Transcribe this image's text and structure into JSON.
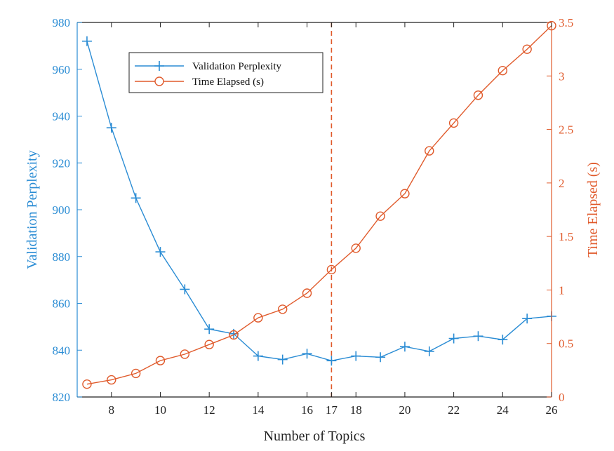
{
  "colors": {
    "left_series": "#2a8cd4",
    "right_series": "#e05a2b",
    "axis": "#222222",
    "vline": "#e05a2b"
  },
  "chart_data": {
    "type": "line",
    "xlabel": "Number of Topics",
    "ylabel_left": "Validation Perplexity",
    "ylabel_right": "Time Elapsed (s)",
    "xlim": [
      6.6,
      26
    ],
    "ylim_left": [
      820,
      980
    ],
    "ylim_right": [
      0,
      3.5
    ],
    "x_ticks": [
      8,
      10,
      12,
      14,
      16,
      17,
      18,
      20,
      22,
      24,
      26
    ],
    "y_left_ticks": [
      820,
      840,
      860,
      880,
      900,
      920,
      940,
      960,
      980
    ],
    "y_right_ticks": [
      0,
      0.5,
      1,
      1.5,
      2,
      2.5,
      3,
      3.5
    ],
    "y_right_tick_labels": [
      "0",
      "0.5",
      "1",
      "1.5",
      "2",
      "2.5",
      "3",
      "3.5"
    ],
    "vertical_line_x": 17,
    "grid": false,
    "legend_position": "top-left",
    "series": [
      {
        "name": "Validation Perplexity",
        "axis": "left",
        "marker": "plus",
        "x": [
          7,
          8,
          9,
          10,
          11,
          12,
          13,
          14,
          15,
          16,
          17,
          18,
          19,
          20,
          21,
          22,
          23,
          24,
          25,
          26
        ],
        "values": [
          972,
          935,
          905,
          882,
          866,
          849,
          847,
          837.5,
          836,
          838.5,
          835.5,
          837.5,
          837,
          841.5,
          839.5,
          845,
          846,
          844.5,
          853.5,
          854.5
        ]
      },
      {
        "name": "Time Elapsed (s)",
        "axis": "right",
        "marker": "circle",
        "x": [
          7,
          8,
          9,
          10,
          11,
          12,
          13,
          14,
          15,
          16,
          17,
          18,
          19,
          20,
          21,
          22,
          23,
          24,
          25,
          26
        ],
        "values": [
          0.12,
          0.16,
          0.22,
          0.34,
          0.4,
          0.49,
          0.58,
          0.74,
          0.82,
          0.97,
          1.19,
          1.39,
          1.69,
          1.9,
          2.3,
          2.56,
          2.82,
          3.05,
          3.25,
          3.47
        ]
      }
    ]
  }
}
